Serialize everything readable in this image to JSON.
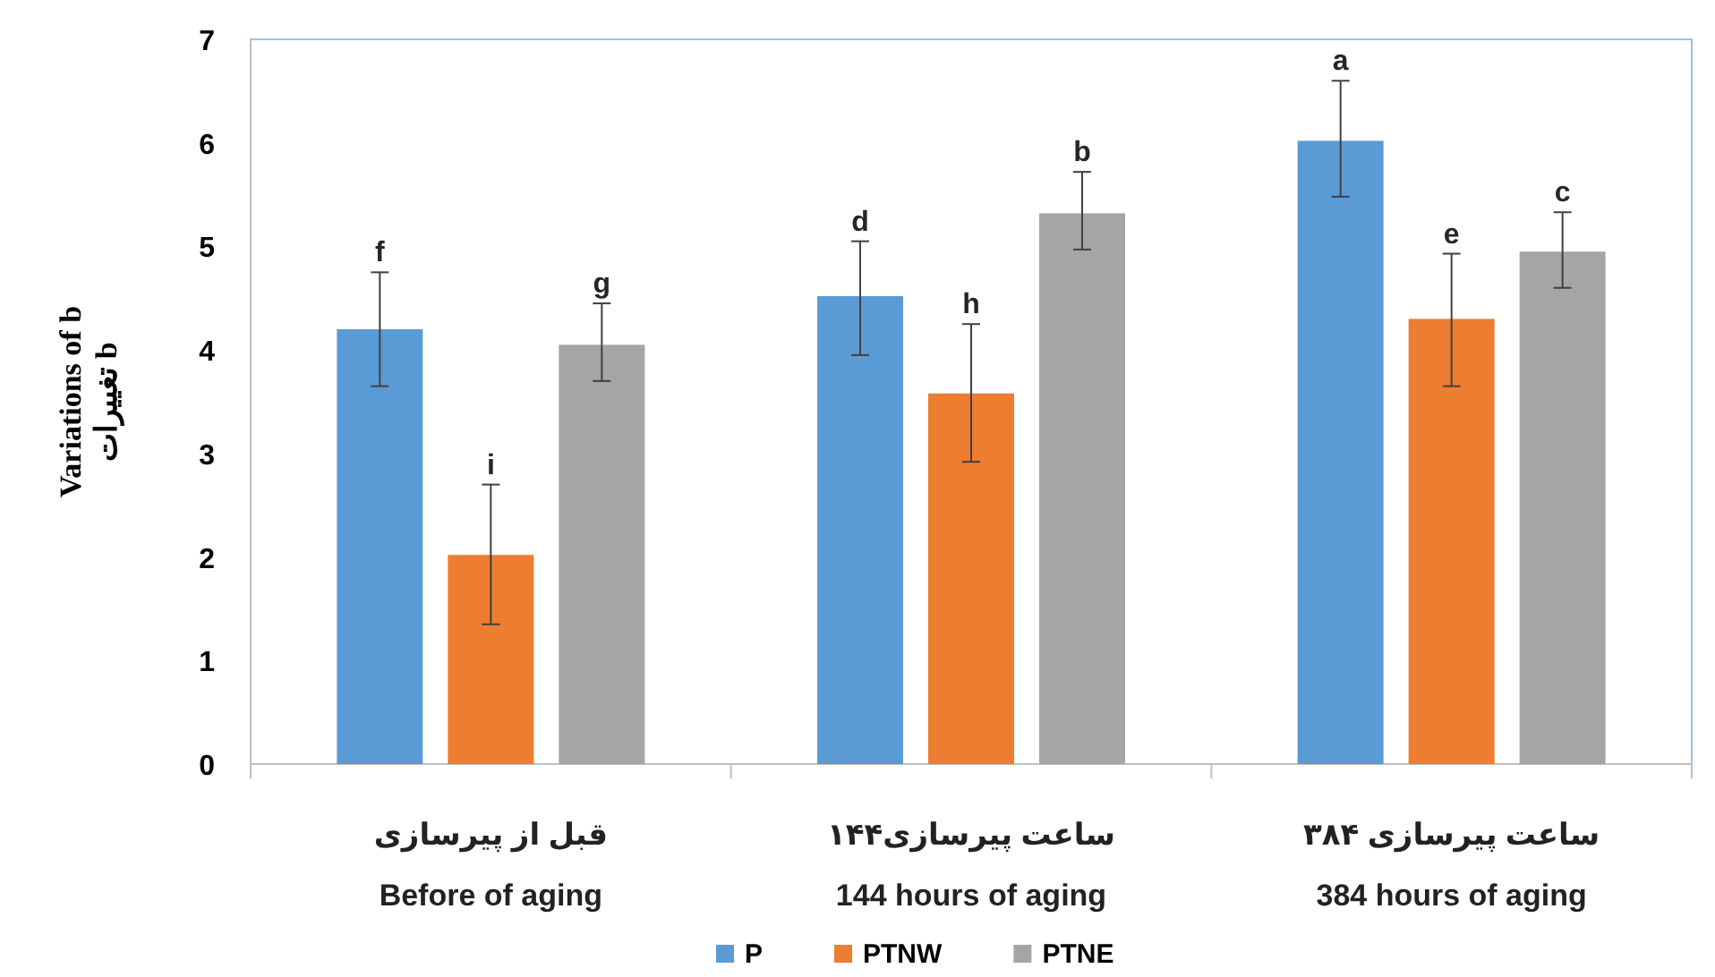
{
  "chart_data": {
    "type": "bar",
    "ylabel": "Variations of b\nتغییرات b",
    "categories": [
      "قبل از پیرسازی\nBefore of aging",
      "۱۴۴ساعت پیرسازی\n144 hours of aging",
      "۳۸۴ ساعت پیرسازی\n384 hours of aging"
    ],
    "series": [
      {
        "name": "P",
        "color": "#5b9bd5",
        "values": [
          4.2,
          4.52,
          6.02
        ],
        "errors": [
          [
            3.65,
            4.75
          ],
          [
            3.95,
            5.05
          ],
          [
            5.48,
            6.6
          ]
        ],
        "value_labels": [
          "f",
          "d",
          "a"
        ]
      },
      {
        "name": "PTNW",
        "color": "#ed7d31",
        "values": [
          2.02,
          3.58,
          4.3
        ],
        "errors": [
          [
            1.35,
            2.7
          ],
          [
            2.92,
            4.25
          ],
          [
            3.65,
            4.93
          ]
        ],
        "value_labels": [
          "i",
          "h",
          "e"
        ]
      },
      {
        "name": "PTNE",
        "color": "#a5a5a5",
        "values": [
          4.05,
          5.32,
          4.95
        ],
        "errors": [
          [
            3.7,
            4.45
          ],
          [
            4.97,
            5.72
          ],
          [
            4.6,
            5.33
          ]
        ],
        "value_labels": [
          "g",
          "b",
          "c"
        ]
      }
    ],
    "ylim": [
      0,
      7
    ],
    "yticks": [
      0,
      1,
      2,
      3,
      4,
      5,
      6,
      7
    ],
    "grid": false,
    "legend": "bottom"
  }
}
